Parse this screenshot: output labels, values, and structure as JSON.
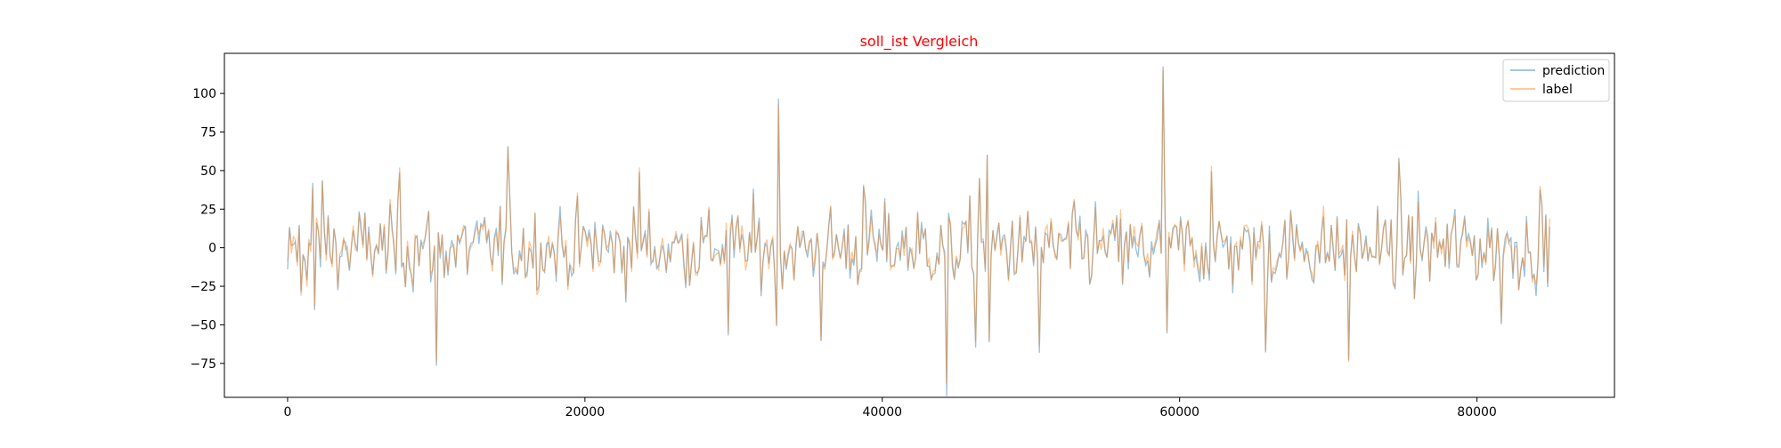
{
  "chart_data": {
    "type": "line",
    "title": "soll_ist Vergleich",
    "title_color": "#ff0000",
    "xlabel": "",
    "ylabel": "",
    "xlim": [
      -4250,
      89250
    ],
    "ylim": [
      -97,
      126
    ],
    "x_ticks": [
      0,
      20000,
      40000,
      60000,
      80000
    ],
    "y_ticks": [
      -75,
      -50,
      -25,
      0,
      25,
      50,
      75,
      100
    ],
    "grid": false,
    "legend": {
      "position": "top-right",
      "entries": [
        "prediction",
        "label"
      ]
    },
    "x_start": 0,
    "x_step": 130,
    "series": [
      {
        "name": "prediction",
        "color": "#1f77b4",
        "alpha": 0.45
      },
      {
        "name": "label",
        "color": "#ff7f0e",
        "alpha": 0.45
      }
    ],
    "spikes": [
      {
        "x": 900,
        "y": -31
      },
      {
        "x": 1700,
        "y": 39
      },
      {
        "x": 1800,
        "y": -38
      },
      {
        "x": 2400,
        "y": 43
      },
      {
        "x": 7500,
        "y": 52
      },
      {
        "x": 10000,
        "y": -74
      },
      {
        "x": 14800,
        "y": 65
      },
      {
        "x": 23600,
        "y": 52
      },
      {
        "x": 29700,
        "y": -55
      },
      {
        "x": 33000,
        "y": 93
      },
      {
        "x": 32900,
        "y": -50
      },
      {
        "x": 35900,
        "y": -60
      },
      {
        "x": 38700,
        "y": 41
      },
      {
        "x": 44300,
        "y": -88
      },
      {
        "x": 46300,
        "y": -61
      },
      {
        "x": 46500,
        "y": 45
      },
      {
        "x": 47100,
        "y": 60
      },
      {
        "x": 47200,
        "y": -60
      },
      {
        "x": 50600,
        "y": -64
      },
      {
        "x": 58900,
        "y": 115
      },
      {
        "x": 59200,
        "y": -54
      },
      {
        "x": 62200,
        "y": 53
      },
      {
        "x": 65800,
        "y": -67
      },
      {
        "x": 71400,
        "y": -74
      },
      {
        "x": 74800,
        "y": 56
      },
      {
        "x": 81700,
        "y": -48
      },
      {
        "x": 84200,
        "y": 40
      }
    ]
  }
}
